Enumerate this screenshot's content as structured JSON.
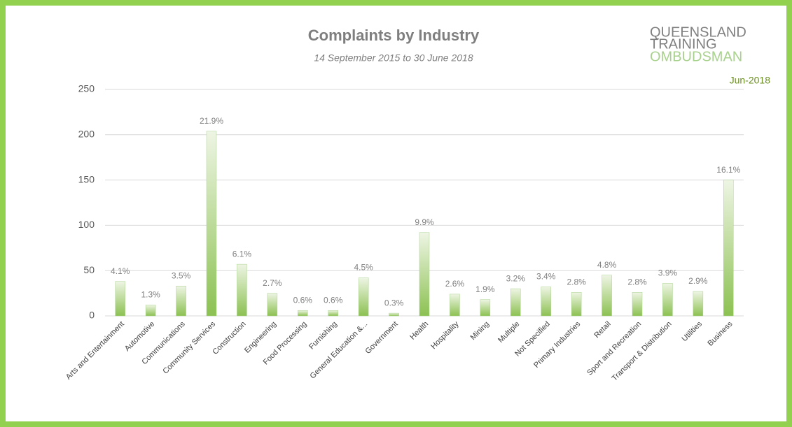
{
  "chart_data": {
    "type": "bar",
    "title": "Complaints by Industry",
    "subtitle": "14 September 2015 to 30 June 2018",
    "logo": [
      "QUEENSLAND",
      "TRAINING",
      "OMBUDSMAN"
    ],
    "date": "Jun-2018",
    "categories": [
      "Arts and Entertainment",
      "Automotive",
      "Communications",
      "Community Services",
      "Construction",
      "Engineering",
      "Food Processing",
      "Furnishing",
      "General Education &...",
      "Government",
      "Health",
      "Hospitality",
      "Mining",
      "Multiple",
      "Not Specified",
      "Primary Industries",
      "Retail",
      "Sport and Recreation",
      "Transport & Distribution",
      "Utilities",
      "Business"
    ],
    "values": [
      38,
      12,
      33,
      204,
      57,
      25,
      6,
      6,
      42,
      3,
      92,
      24,
      18,
      30,
      32,
      26,
      45,
      26,
      36,
      27,
      150
    ],
    "value_labels": [
      "4.1%",
      "1.3%",
      "3.5%",
      "21.9%",
      "6.1%",
      "2.7%",
      "0.6%",
      "0.6%",
      "4.5%",
      "0.3%",
      "9.9%",
      "2.6%",
      "1.9%",
      "3.2%",
      "3.4%",
      "2.8%",
      "4.8%",
      "2.8%",
      "3.9%",
      "2.9%",
      "16.1%"
    ],
    "color": "#8cc152",
    "ylim": [
      0,
      250
    ],
    "yticks": [
      0,
      50,
      100,
      150,
      200,
      250
    ],
    "grid": true
  }
}
